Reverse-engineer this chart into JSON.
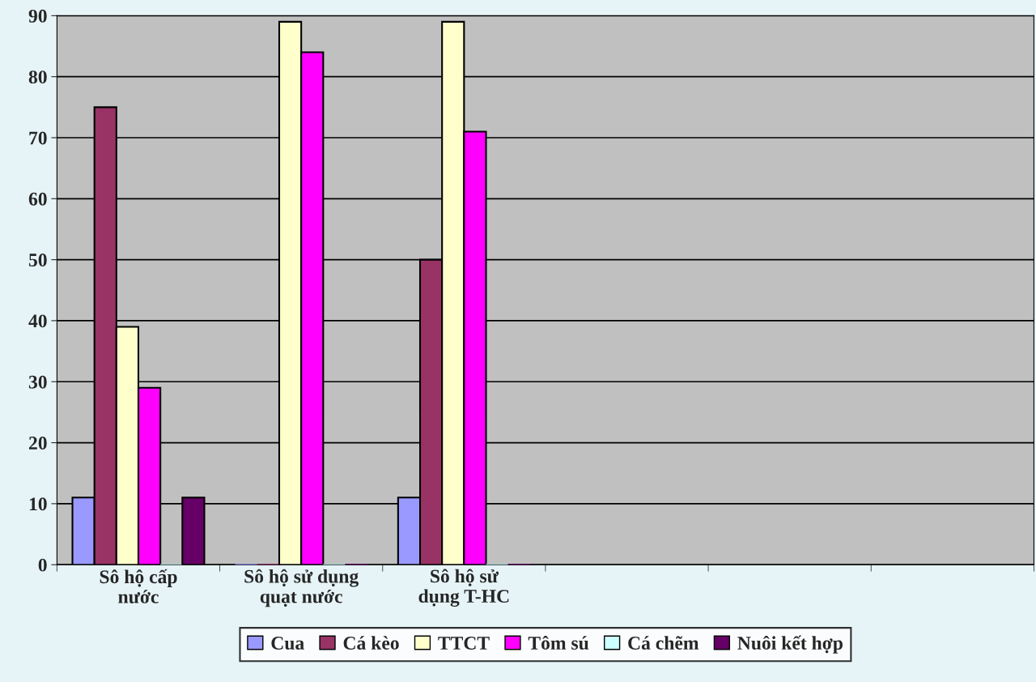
{
  "chart_data": {
    "type": "bar",
    "categories": [
      "Sô hộ cấp\nnước",
      "Sô hộ sử dụng\nquạt nước",
      "Sô hộ sử\ndụng T-HC",
      null,
      null,
      null
    ],
    "series": [
      {
        "name": "Cua",
        "color": "#9999ff",
        "values": [
          11,
          0,
          11,
          null,
          null,
          null
        ]
      },
      {
        "name": "Cá kèo",
        "color": "#993366",
        "values": [
          75,
          0,
          50,
          null,
          null,
          null
        ]
      },
      {
        "name": "TTCT",
        "color": "#ffffcc",
        "values": [
          39,
          89,
          89,
          null,
          null,
          null
        ]
      },
      {
        "name": "Tôm sú",
        "color": "#ff00ff",
        "values": [
          29,
          84,
          71,
          null,
          null,
          null
        ]
      },
      {
        "name": "Cá chẽm",
        "color": "#ccffff",
        "values": [
          0,
          0,
          0,
          null,
          null,
          null
        ]
      },
      {
        "name": "Nuôi kết hợp",
        "color": "#660066",
        "values": [
          11,
          0,
          0,
          null,
          null,
          null
        ]
      }
    ],
    "ylim": [
      0,
      90
    ],
    "yticks": [
      0,
      10,
      20,
      30,
      40,
      50,
      60,
      70,
      80,
      90
    ],
    "grid": "y",
    "legend": "bottom"
  }
}
